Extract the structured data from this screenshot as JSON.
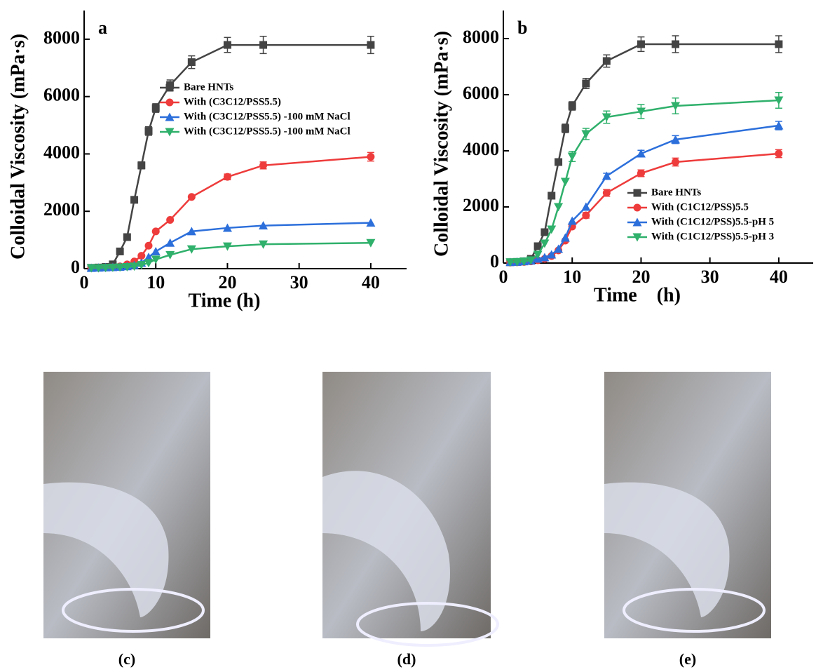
{
  "chart_data": [
    {
      "type": "line",
      "panel_label": "a",
      "x_label": "Time (h)",
      "y_label": "Colloidal Viscosity (mPa·s)",
      "x": [
        1,
        2,
        3,
        4,
        5,
        6,
        7,
        8,
        9,
        10,
        12,
        15,
        20,
        25,
        40
      ],
      "xlim": [
        0,
        45
      ],
      "xticks": [
        0,
        10,
        20,
        30,
        40
      ],
      "ylim": [
        0,
        9000
      ],
      "yticks": [
        0,
        2000,
        4000,
        6000,
        8000
      ],
      "series": [
        {
          "name": "Bare HNTs",
          "color": "#444444",
          "marker": "square",
          "values": [
            30,
            40,
            60,
            150,
            600,
            1100,
            2400,
            3600,
            4800,
            5600,
            6400,
            7200,
            7800,
            7800,
            7800
          ],
          "errors": [
            0,
            0,
            0,
            0,
            0,
            0,
            100,
            120,
            150,
            150,
            180,
            220,
            260,
            300,
            300
          ]
        },
        {
          "name": "With (C3C12/PSS5.5)",
          "color": "#ee3b3b",
          "marker": "circle",
          "values": [
            20,
            30,
            40,
            50,
            80,
            150,
            250,
            450,
            800,
            1300,
            1700,
            2500,
            3200,
            3600,
            3900
          ],
          "errors": [
            0,
            0,
            0,
            0,
            0,
            0,
            0,
            0,
            0,
            0,
            0,
            0,
            100,
            120,
            150
          ]
        },
        {
          "name": "With (C3C12/PSS5.5) -100 mM NaCl",
          "color": "#2c6fdb",
          "marker": "triangle-up",
          "values": [
            20,
            30,
            40,
            50,
            60,
            80,
            120,
            200,
            400,
            600,
            900,
            1300,
            1420,
            1500,
            1600
          ],
          "errors": [
            0,
            0,
            0,
            0,
            0,
            0,
            0,
            0,
            0,
            0,
            0,
            0,
            0,
            0,
            0
          ]
        },
        {
          "name": "With (C3C12/PSS5.5) -100 mM NaCl",
          "color": "#2fb06b",
          "marker": "triangle-down",
          "values": [
            20,
            20,
            30,
            40,
            50,
            60,
            80,
            130,
            200,
            320,
            480,
            680,
            780,
            850,
            900
          ],
          "errors": [
            0,
            0,
            0,
            0,
            0,
            0,
            0,
            0,
            0,
            0,
            0,
            0,
            0,
            0,
            0
          ]
        }
      ]
    },
    {
      "type": "line",
      "panel_label": "b",
      "x_label": "Time　(h)",
      "y_label": "Colloidal Viscosity (mPa·s)",
      "x": [
        1,
        2,
        3,
        4,
        5,
        6,
        7,
        8,
        9,
        10,
        12,
        15,
        20,
        25,
        40
      ],
      "xlim": [
        0,
        45
      ],
      "xticks": [
        0,
        10,
        20,
        30,
        40
      ],
      "ylim": [
        0,
        9000
      ],
      "yticks": [
        0,
        2000,
        4000,
        6000,
        8000
      ],
      "series": [
        {
          "name": "Bare HNTs",
          "color": "#444444",
          "marker": "square",
          "values": [
            30,
            40,
            60,
            150,
            600,
            1100,
            2400,
            3600,
            4800,
            5600,
            6400,
            7200,
            7800,
            7800,
            7800
          ],
          "errors": [
            0,
            0,
            0,
            0,
            0,
            0,
            100,
            120,
            150,
            150,
            180,
            220,
            260,
            300,
            300
          ]
        },
        {
          "name": "With (C1C12/PSS)5.5",
          "color": "#ee3b3b",
          "marker": "circle",
          "values": [
            20,
            30,
            40,
            60,
            100,
            150,
            250,
            450,
            800,
            1300,
            1700,
            2500,
            3200,
            3600,
            3900
          ],
          "errors": [
            0,
            0,
            0,
            0,
            0,
            0,
            0,
            0,
            0,
            0,
            100,
            120,
            120,
            140,
            140
          ]
        },
        {
          "name": "With (C1C12/PSS)5.5-pH 5",
          "color": "#2c6fdb",
          "marker": "triangle-up",
          "values": [
            30,
            40,
            60,
            80,
            150,
            200,
            300,
            500,
            900,
            1500,
            2000,
            3100,
            3900,
            4400,
            4900
          ],
          "errors": [
            0,
            0,
            0,
            0,
            0,
            0,
            0,
            0,
            0,
            0,
            0,
            100,
            120,
            140,
            150
          ]
        },
        {
          "name": "With (C1C12/PSS)5.5-pH 3",
          "color": "#2fb06b",
          "marker": "triangle-down",
          "values": [
            30,
            40,
            60,
            100,
            300,
            700,
            1200,
            2000,
            2900,
            3800,
            4600,
            5200,
            5400,
            5600,
            5800
          ],
          "errors": [
            0,
            0,
            0,
            0,
            0,
            0,
            0,
            0,
            0,
            180,
            200,
            220,
            250,
            280,
            280
          ]
        }
      ]
    }
  ],
  "photos": {
    "captions": [
      "(c)",
      "(d)",
      "(e)"
    ]
  }
}
